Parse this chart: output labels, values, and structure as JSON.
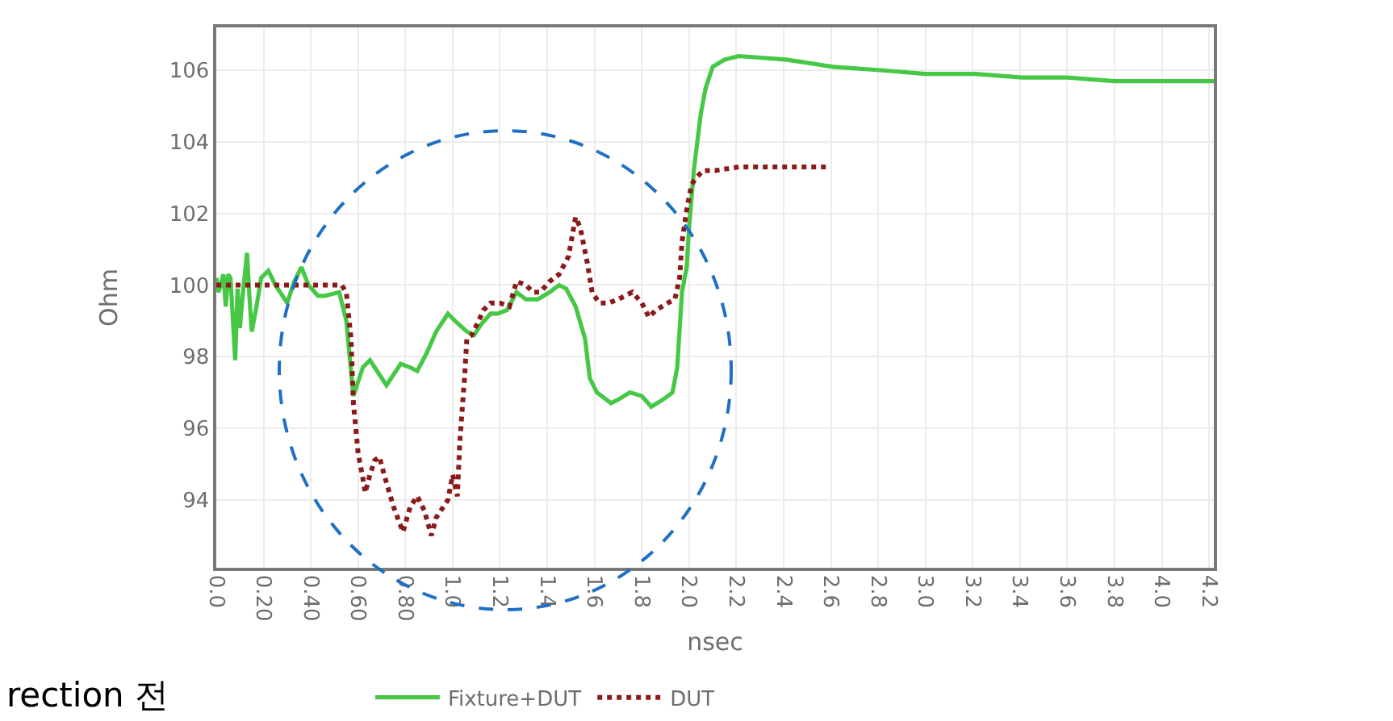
{
  "chart_data": {
    "type": "line",
    "xlabel": "nsec",
    "ylabel": "Ohm",
    "annotations": [
      "rection 전"
    ],
    "xlim": [
      0,
      4.22
    ],
    "xticks": [
      {
        "value": 0,
        "label": "0.0"
      },
      {
        "value": 0.2,
        "label": "0.20"
      },
      {
        "value": 0.4,
        "label": "0.40"
      },
      {
        "value": 0.6,
        "label": "0.60"
      },
      {
        "value": 0.8,
        "label": "0.80"
      },
      {
        "value": 1,
        "label": "1.0"
      },
      1.2,
      1.4,
      1.6,
      1.8,
      {
        "value": 2,
        "label": "2.0"
      },
      2.2,
      2.4,
      2.6,
      2.8,
      {
        "value": 3,
        "label": "3.0"
      },
      3.2,
      3.4,
      3.6,
      3.8,
      {
        "value": 4,
        "label": "4.0"
      },
      4.2
    ],
    "ylim": [
      92.1,
      107.2
    ],
    "yticks": [
      94,
      96,
      98,
      100,
      102,
      104,
      106
    ],
    "grid": true,
    "legend": "bottom",
    "marker": "none",
    "series": [
      {
        "name": "Fixture+DUT",
        "color": "#46c846",
        "line_style": "solid",
        "x": [
          0,
          0.01,
          0.03,
          0.04,
          0.05,
          0.06,
          0.08,
          0.09,
          0.1,
          0.11,
          0.13,
          0.14,
          0.15,
          0.17,
          0.19,
          0.22,
          0.25,
          0.3,
          0.33,
          0.36,
          0.39,
          0.43,
          0.46,
          0.52,
          0.55,
          0.58,
          0.62,
          0.65,
          0.68,
          0.72,
          0.78,
          0.82,
          0.85,
          0.89,
          0.93,
          0.98,
          1.01,
          1.06,
          1.09,
          1.12,
          1.16,
          1.19,
          1.23,
          1.27,
          1.31,
          1.36,
          1.41,
          1.45,
          1.48,
          1.52,
          1.56,
          1.58,
          1.61,
          1.67,
          1.7,
          1.75,
          1.8,
          1.84,
          1.89,
          1.93,
          1.95,
          1.97,
          1.99,
          2.0,
          2.02,
          2.05,
          2.07,
          2.1,
          2.15,
          2.21,
          2.41,
          2.61,
          2.82,
          3.0,
          3.21,
          3.41,
          3.6,
          3.8,
          4.0,
          4.22
        ],
        "values": [
          100.2,
          99.8,
          100.3,
          99.4,
          100.3,
          100.2,
          97.9,
          99.9,
          98.8,
          99.6,
          100.9,
          99.7,
          98.7,
          99.4,
          100.2,
          100.4,
          100.0,
          99.5,
          100.1,
          100.5,
          100.0,
          99.7,
          99.7,
          99.8,
          99.0,
          96.9,
          97.7,
          97.9,
          97.6,
          97.2,
          97.8,
          97.7,
          97.6,
          98.1,
          98.7,
          99.2,
          99.0,
          98.7,
          98.6,
          98.9,
          99.2,
          99.2,
          99.3,
          99.8,
          99.6,
          99.6,
          99.8,
          100.0,
          99.9,
          99.4,
          98.5,
          97.4,
          97.0,
          96.7,
          96.8,
          97.0,
          96.9,
          96.6,
          96.8,
          97.0,
          97.7,
          99.8,
          100.5,
          101.6,
          103.2,
          104.8,
          105.5,
          106.1,
          106.3,
          106.4,
          106.3,
          106.1,
          106.0,
          105.9,
          105.9,
          105.8,
          105.8,
          105.7,
          105.7,
          105.7
        ]
      },
      {
        "name": "DUT",
        "color": "#8b1a1a",
        "line_style": "dotted",
        "x": [
          0,
          0.22,
          0.53,
          0.55,
          0.57,
          0.58,
          0.6,
          0.62,
          0.63,
          0.65,
          0.67,
          0.69,
          0.71,
          0.75,
          0.79,
          0.82,
          0.85,
          0.88,
          0.91,
          0.93,
          0.98,
          1.0,
          1.02,
          1.03,
          1.05,
          1.06,
          1.08,
          1.11,
          1.13,
          1.16,
          1.2,
          1.24,
          1.27,
          1.31,
          1.34,
          1.37,
          1.41,
          1.45,
          1.49,
          1.52,
          1.54,
          1.57,
          1.59,
          1.62,
          1.66,
          1.7,
          1.76,
          1.8,
          1.83,
          1.86,
          1.91,
          1.94,
          1.96,
          1.97,
          1.99,
          2.01,
          2.03,
          2.06,
          2.11,
          2.21,
          2.39,
          2.59
        ],
        "values": [
          100.0,
          100.0,
          100.0,
          99.8,
          98.5,
          96.7,
          95.3,
          94.6,
          94.2,
          94.7,
          95.1,
          95.2,
          94.7,
          93.8,
          93.1,
          93.8,
          94.1,
          93.7,
          93.0,
          93.5,
          94.0,
          94.7,
          94.1,
          95.6,
          97.4,
          98.5,
          98.6,
          99.0,
          99.3,
          99.5,
          99.5,
          99.4,
          100.1,
          100.0,
          99.8,
          99.8,
          100.1,
          100.3,
          100.8,
          101.9,
          101.6,
          100.6,
          99.8,
          99.5,
          99.5,
          99.6,
          99.8,
          99.5,
          99.1,
          99.3,
          99.5,
          99.6,
          100.2,
          101.2,
          102.1,
          102.8,
          103.0,
          103.2,
          103.2,
          103.3,
          103.3,
          103.3
        ]
      }
    ]
  }
}
